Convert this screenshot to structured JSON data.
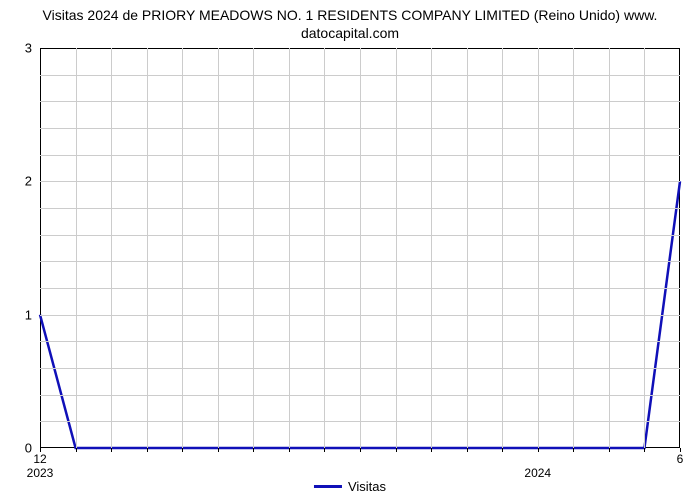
{
  "chart": {
    "type": "line",
    "title_line1": "Visitas 2024 de PRIORY MEADOWS NO. 1 RESIDENTS COMPANY LIMITED (Reino Unido) www.",
    "title_line2": "datocapital.com",
    "title_fontsize": 14,
    "title_color": "#000000",
    "background_color": "#ffffff",
    "plot_border_color": "#000000",
    "grid_color": "#cccccc",
    "line_color": "#1010b8",
    "line_width": 2.5,
    "ylim": [
      0,
      3
    ],
    "ytick_step_major": 1,
    "ytick_step_minor": 0.2,
    "ytick_labels": [
      "0",
      "1",
      "2",
      "3"
    ],
    "x_count": 19,
    "x_major_labels": [
      {
        "index": 0,
        "label": "12"
      },
      {
        "index": 18,
        "label": "6"
      }
    ],
    "x_year_labels": [
      {
        "index": 0,
        "label": "2023"
      },
      {
        "index": 14,
        "label": "2024"
      }
    ],
    "x_minor_tick_every": true,
    "series": {
      "name": "Visitas",
      "values": [
        1,
        0,
        0,
        0,
        0,
        0,
        0,
        0,
        0,
        0,
        0,
        0,
        0,
        0,
        0,
        0,
        0,
        0,
        2
      ]
    },
    "legend_label": "Visitas",
    "label_fontsize": 13
  }
}
